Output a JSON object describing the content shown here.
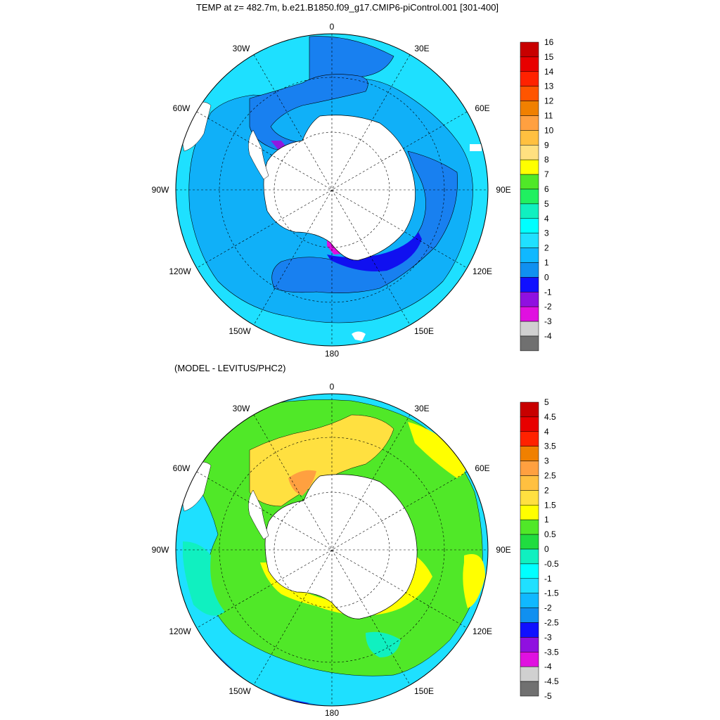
{
  "colors": {
    "ocean_outer": "#1ee0ff",
    "ocean_mid": "#10a8f8",
    "ocean_deep": "#1880f0",
    "dark_blue": "#1010f0",
    "purple": "#9018e0",
    "land": "#ffffff",
    "green_bright": "#50e828",
    "green_mid": "#20dc40",
    "yellow": "#ffff00",
    "light_orange": "#ffd030",
    "orange": "#ffa030",
    "cyan_light": "#00f0d0"
  },
  "panels": [
    {
      "title": "TEMP at z= 482.7m, b.e21.B1850.f09_g17.CMIP6-piControl.001 [301-400]",
      "longitude_labels": [
        "0",
        "30E",
        "60E",
        "90E",
        "120E",
        "150E",
        "180",
        "150W",
        "120W",
        "90W",
        "60W",
        "30W"
      ],
      "colorbar_labels": [
        "16",
        "15",
        "14",
        "13",
        "12",
        "11",
        "10",
        "9",
        "8",
        "7",
        "6",
        "5",
        "4",
        "3",
        "2",
        "1",
        "0",
        "-1",
        "-2",
        "-3",
        "-4"
      ],
      "colorbar_colors": [
        "#c80000",
        "#e80000",
        "#ff2200",
        "#ff5500",
        "#f08000",
        "#ffa040",
        "#ffc040",
        "#ffe080",
        "#ffff00",
        "#50e828",
        "#20f060",
        "#10f0c0",
        "#00ffff",
        "#20e0ff",
        "#10b8ff",
        "#1090f0",
        "#1010ff",
        "#9010e0",
        "#e010e0",
        "#d0d0d0",
        "#707070"
      ]
    },
    {
      "title": "(MODEL - LEVITUS/PHC2)",
      "longitude_labels": [
        "0",
        "30E",
        "60E",
        "90E",
        "120E",
        "150E",
        "180",
        "150W",
        "120W",
        "90W",
        "60W",
        "30W"
      ],
      "colorbar_labels": [
        "5",
        "4.5",
        "4",
        "3.5",
        "3",
        "2.5",
        "2",
        "1.5",
        "1",
        "0.5",
        "0",
        "-0.5",
        "-1",
        "-1.5",
        "-2",
        "-2.5",
        "-3",
        "-3.5",
        "-4",
        "-4.5",
        "-5"
      ],
      "colorbar_colors": [
        "#c80000",
        "#e80000",
        "#ff2200",
        "#f08000",
        "#ffa040",
        "#ffc040",
        "#ffe040",
        "#ffff00",
        "#50e828",
        "#20dc40",
        "#10f0c0",
        "#00ffff",
        "#20e0ff",
        "#10b8ff",
        "#1090f0",
        "#1010ff",
        "#9010e0",
        "#e010e0",
        "#d0d0d0",
        "#707070"
      ]
    }
  ]
}
